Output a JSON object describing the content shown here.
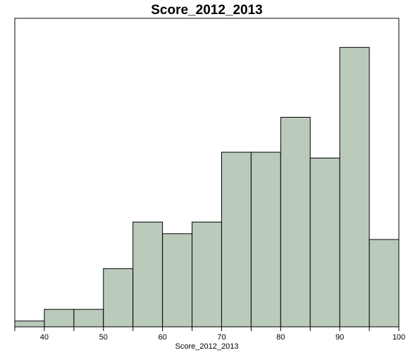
{
  "chart_data": {
    "type": "bar",
    "title": "Score_2012_2013",
    "xlabel": "Score_2012_2013",
    "ylabel": "",
    "bin_edges": [
      35,
      40,
      45,
      50,
      55,
      60,
      65,
      70,
      75,
      80,
      85,
      90,
      95,
      100
    ],
    "values": [
      1,
      3,
      3,
      10,
      18,
      16,
      18,
      30,
      30,
      36,
      29,
      48,
      15
    ],
    "xlim": [
      35,
      100
    ],
    "ylim": [
      0,
      53
    ],
    "x_ticks": [
      40,
      50,
      60,
      70,
      80,
      90,
      100
    ],
    "x_minor_ticks": [
      35,
      45,
      55,
      65,
      75,
      85,
      95
    ],
    "y_ticks_shown": false,
    "grid": false,
    "legend": "none",
    "colors": {
      "bar_fill": "#bacabb",
      "bar_edge": "#000000",
      "background": "#ffffff"
    }
  }
}
